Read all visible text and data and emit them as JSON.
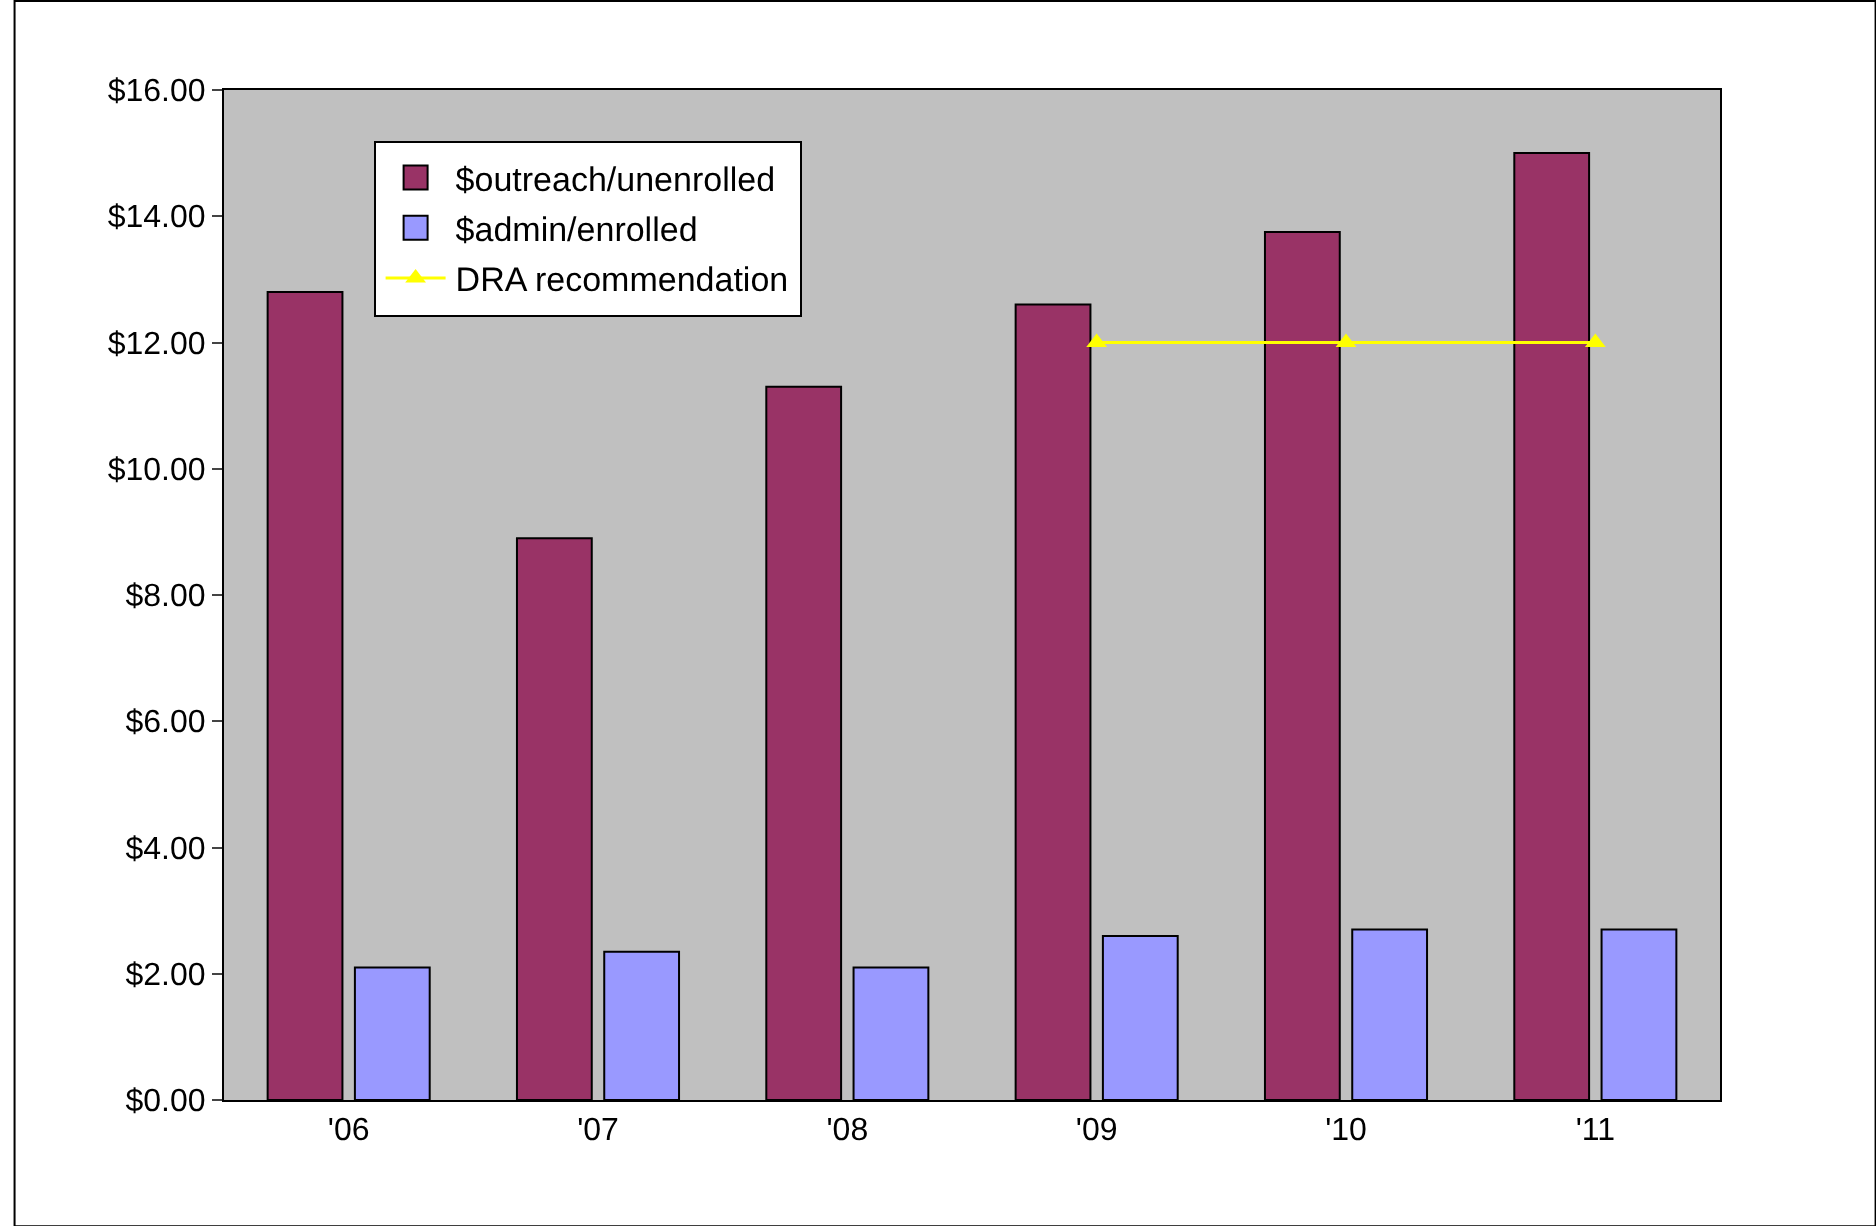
{
  "chart_data": {
    "type": "bar",
    "categories": [
      "'06",
      "'07",
      "'08",
      "'09",
      "'10",
      "'11"
    ],
    "series": [
      {
        "name": "$outreach/unenrolled",
        "color": "#993366",
        "values": [
          12.8,
          8.9,
          11.3,
          12.6,
          13.75,
          15.0
        ]
      },
      {
        "name": "$admin/enrolled",
        "color": "#9999ff",
        "values": [
          2.1,
          2.35,
          2.1,
          2.6,
          2.7,
          2.7
        ]
      },
      {
        "name": "DRA recommendation",
        "type": "line",
        "color": "#ffff00",
        "marker": "triangle",
        "values": [
          null,
          null,
          null,
          12.0,
          12.0,
          12.0
        ]
      }
    ],
    "ylim": [
      0,
      16
    ],
    "yticks": [
      {
        "value": 0,
        "label": "$0.00"
      },
      {
        "value": 2,
        "label": "$2.00"
      },
      {
        "value": 4,
        "label": "$4.00"
      },
      {
        "value": 6,
        "label": "$6.00"
      },
      {
        "value": 8,
        "label": "$8.00"
      },
      {
        "value": 10,
        "label": "$10.00"
      },
      {
        "value": 12,
        "label": "$12.00"
      },
      {
        "value": 14,
        "label": "$14.00"
      },
      {
        "value": 16,
        "label": "$16.00"
      }
    ],
    "grid": false,
    "legend": "top left"
  }
}
